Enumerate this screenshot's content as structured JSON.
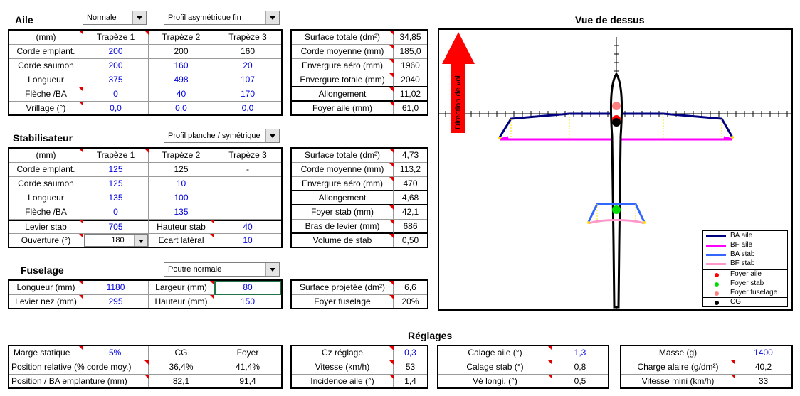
{
  "aile": {
    "title": "Aile",
    "dd_type": "Normale",
    "dd_profil": "Profil asymétrique fin",
    "headers": [
      "(mm)",
      "Trapèze 1",
      "Trapèze 2",
      "Trapèze 3"
    ],
    "rows": [
      {
        "label": "Corde emplant.",
        "v": [
          "200",
          "200",
          "160"
        ]
      },
      {
        "label": "Corde saumon",
        "v": [
          "200",
          "160",
          "20"
        ]
      },
      {
        "label": "Longueur",
        "v": [
          "375",
          "498",
          "107"
        ]
      },
      {
        "label": "Flèche /BA",
        "v": [
          "0",
          "40",
          "170"
        ]
      },
      {
        "label": "Vrillage (°)",
        "v": [
          "0,0",
          "0,0",
          "0,0"
        ]
      }
    ],
    "summary": [
      {
        "label": "Surface totale (dm²)",
        "value": "34,85"
      },
      {
        "label": "Corde moyenne (mm)",
        "value": "185,0"
      },
      {
        "label": "Envergure aéro (mm)",
        "value": "1960"
      },
      {
        "label": "Envergure totale (mm)",
        "value": "2040"
      },
      {
        "label": "Allongement",
        "value": "11,02"
      },
      {
        "label": "Foyer aile (mm)",
        "value": "61,0"
      }
    ]
  },
  "stab": {
    "title": "Stabilisateur",
    "dd_profil": "Profil planche / symétrique",
    "headers": [
      "(mm)",
      "Trapèze 1",
      "Trapèze 2",
      "Trapèze 3"
    ],
    "rows": [
      {
        "label": "Corde emplant.",
        "v": [
          "125",
          "125",
          "-"
        ]
      },
      {
        "label": "Corde saumon",
        "v": [
          "125",
          "10",
          ""
        ]
      },
      {
        "label": "Longueur",
        "v": [
          "135",
          "100",
          ""
        ]
      },
      {
        "label": "Flèche /BA",
        "v": [
          "0",
          "135",
          ""
        ]
      }
    ],
    "levier_label": "Levier stab",
    "levier_value": "705",
    "hauteur_label": "Hauteur stab",
    "hauteur_value": "40",
    "ouverture_label": "Ouverture (°)",
    "ouverture_value": "180",
    "ecart_label": "Ecart latéral",
    "ecart_value": "10",
    "summary": [
      {
        "label": "Surface totale (dm²)",
        "value": "4,73"
      },
      {
        "label": "Corde moyenne (mm)",
        "value": "113,2"
      },
      {
        "label": "Envergure aéro (mm)",
        "value": "470"
      },
      {
        "label": "Allongement",
        "value": "4,68"
      },
      {
        "label": "Foyer stab (mm)",
        "value": "42,1"
      },
      {
        "label": "Bras de levier (mm)",
        "value": "686"
      },
      {
        "label": "Volume de stab",
        "value": "0,50"
      }
    ]
  },
  "fuselage": {
    "title": "Fuselage",
    "dd_type": "Poutre normale",
    "longueur_label": "Longueur (mm)",
    "longueur_value": "1180",
    "largeur_label": "Largeur (mm)",
    "largeur_value": "80",
    "levier_nez_label": "Levier nez (mm)",
    "levier_nez_value": "295",
    "hauteur_label": "Hauteur (mm)",
    "hauteur_value": "150",
    "surface_label": "Surface projetée (dm²)",
    "surface_value": "6,6",
    "foyer_label": "Foyer fuselage",
    "foyer_value": "20%"
  },
  "view": {
    "title": "Vue de dessus",
    "direction": "Direction de vol",
    "legend": [
      "BA aile",
      "BF aile",
      "BA stab",
      "BF stab",
      "Foyer aile",
      "Foyer stab",
      "Foyer fuselage",
      "CG"
    ]
  },
  "reglages": {
    "title": "Réglages",
    "marge_label": "Marge statique",
    "marge_value": "5%",
    "cg_header": "CG",
    "foyer_header": "Foyer",
    "pos_rel_label": "Position relative (% corde moy.)",
    "pos_rel_cg": "36,4%",
    "pos_rel_foyer": "41,4%",
    "pos_ba_label": "Position / BA emplanture (mm)",
    "pos_ba_cg": "82,1",
    "pos_ba_foyer": "91,4",
    "cz_label": "Cz réglage",
    "cz_value": "0,3",
    "vitesse_label": "Vitesse  (km/h)",
    "vitesse_value": "53",
    "incidence_label": "Incidence aile (°)",
    "incidence_value": "1,4",
    "calage_aile_label": "Calage aile (°)",
    "calage_aile_value": "1,3",
    "calage_stab_label": "Calage stab (°)",
    "calage_stab_value": "0,8",
    "ve_label": "Vé longi. (°)",
    "ve_value": "0,5",
    "masse_label": "Masse (g)",
    "masse_value": "1400",
    "charge_label": "Charge alaire (g/dm²)",
    "charge_value": "40,2",
    "vmini_label": "Vitesse mini (km/h)",
    "vmini_value": "33"
  },
  "colors": {
    "ba_aile": "#000080",
    "bf_aile": "#ff00ff",
    "ba_stab": "#3366ff",
    "bf_stab": "#ff99cc",
    "foyer_aile": "#ff0000",
    "foyer_stab": "#00dd00",
    "foyer_fuselage": "#ff8080",
    "cg": "#000000",
    "arrow": "#ff0000",
    "blue_value": "#0000e0"
  }
}
